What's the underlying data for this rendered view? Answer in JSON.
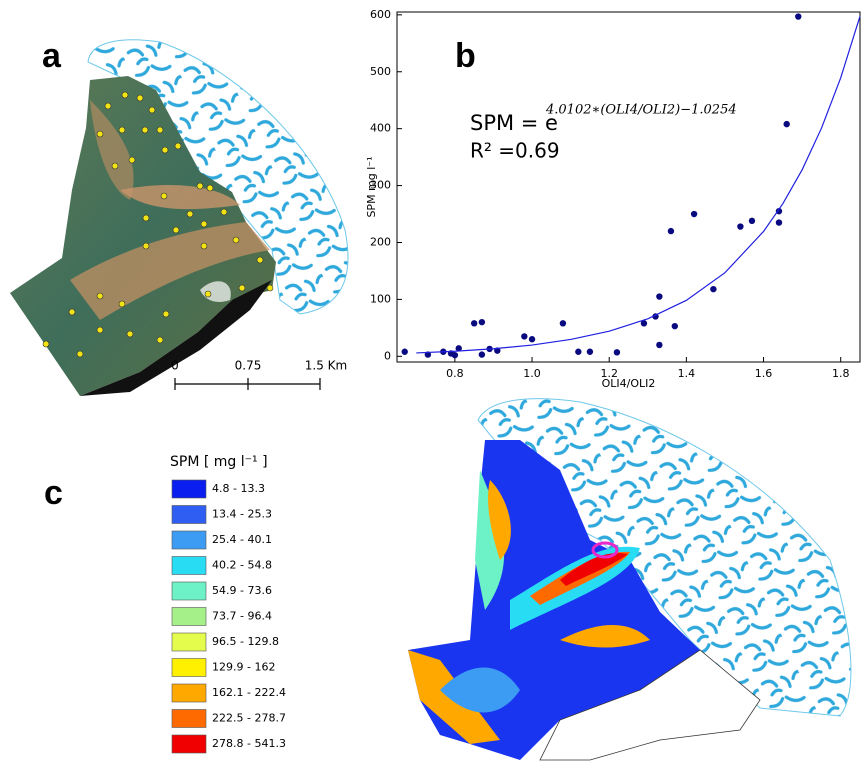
{
  "panels": {
    "a": "a",
    "c": "c"
  },
  "scale_bar": {
    "labels": [
      "0",
      "0.75",
      "1.5 Km"
    ]
  },
  "legend": {
    "title": "SPM  [ mg l⁻¹ ]",
    "items": [
      {
        "label": "4.8 - 13.3",
        "color": "#0a1ef0"
      },
      {
        "label": "13.4 - 25.3",
        "color": "#2e5ff2"
      },
      {
        "label": "25.4 - 40.1",
        "color": "#3c9cf4"
      },
      {
        "label": "40.2 - 54.8",
        "color": "#28dcf4"
      },
      {
        "label": "54.9 - 73.6",
        "color": "#6cf2c6"
      },
      {
        "label": "73.7 - 96.4",
        "color": "#a6f08a"
      },
      {
        "label": "96.5 - 129.8",
        "color": "#e4fc4c"
      },
      {
        "label": "129.9 - 162",
        "color": "#fff000"
      },
      {
        "label": "162.1 - 222.4",
        "color": "#ffa800"
      },
      {
        "label": "222.5 - 278.7",
        "color": "#ff6a00"
      },
      {
        "label": "278.8 - 541.3",
        "color": "#f00000"
      }
    ]
  },
  "chart_data": {
    "type": "scatter",
    "label": "b",
    "x_label": "OLI4/OLI2",
    "y_label": "SPM mg l⁻¹",
    "equation": {
      "base": "SPM = e",
      "exponent": "4.0102∗(OLI4/OLI2)−1.0254",
      "r2": "R² =0.69"
    },
    "xlim": [
      0.65,
      1.85
    ],
    "ylim": [
      -10,
      605
    ],
    "xticks": [
      0.8,
      {
        "value": 1.0,
        "label": "1.0"
      },
      1.2,
      1.4,
      1.6,
      1.8
    ],
    "yticks": [
      0,
      100,
      200,
      300,
      400,
      500,
      600
    ],
    "series": [
      {
        "type": "scatter",
        "color": "#0a0a80",
        "x": [
          0.67,
          0.73,
          0.77,
          0.79,
          0.8,
          0.81,
          0.85,
          0.87,
          0.87,
          0.89,
          0.91,
          0.98,
          1.0,
          1.08,
          1.12,
          1.15,
          1.22,
          1.29,
          1.32,
          1.33,
          1.33,
          1.36,
          1.37,
          1.42,
          1.47,
          1.54,
          1.57,
          1.64,
          1.64,
          1.66,
          1.69
        ],
        "values": [
          8,
          3,
          8,
          5,
          2,
          14,
          58,
          60,
          3,
          13,
          10,
          35,
          30,
          58,
          8,
          8,
          7,
          58,
          70,
          20,
          105,
          220,
          53,
          250,
          118,
          228,
          238,
          235,
          255,
          408,
          597
        ]
      },
      {
        "type": "line",
        "color": "#2020e0",
        "x": [
          0.7,
          0.8,
          0.9,
          1.0,
          1.1,
          1.2,
          1.3,
          1.4,
          1.5,
          1.6,
          1.65,
          1.7,
          1.75,
          1.8,
          1.85
        ],
        "values": [
          5.9,
          8.9,
          13.3,
          19.8,
          29.6,
          44.1,
          65.9,
          98.4,
          146.9,
          219.4,
          268.2,
          327.7,
          400.6,
          489.4,
          597.7
        ]
      }
    ]
  }
}
